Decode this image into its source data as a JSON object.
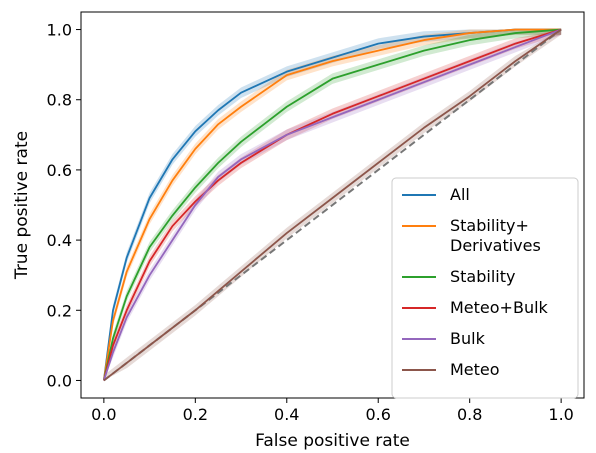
{
  "chart_data": {
    "type": "line",
    "title": "",
    "xlabel": "False positive rate",
    "ylabel": "True positive rate",
    "xlim": [
      -0.05,
      1.05
    ],
    "ylim": [
      -0.05,
      1.05
    ],
    "xticks": [
      "0.0",
      "0.2",
      "0.4",
      "0.6",
      "0.8",
      "1.0"
    ],
    "yticks": [
      "0.0",
      "0.2",
      "0.4",
      "0.6",
      "0.8",
      "1.0"
    ],
    "grid": false,
    "legend_position": "lower-right",
    "series": [
      {
        "name": "All",
        "color": "#1f77b4",
        "x": [
          0,
          0.02,
          0.05,
          0.1,
          0.15,
          0.2,
          0.25,
          0.3,
          0.4,
          0.5,
          0.6,
          0.7,
          0.8,
          0.9,
          1.0
        ],
        "y": [
          0,
          0.2,
          0.35,
          0.52,
          0.63,
          0.71,
          0.77,
          0.82,
          0.88,
          0.92,
          0.96,
          0.98,
          0.99,
          1.0,
          1.0
        ]
      },
      {
        "name": "Stability+\nDerivatives",
        "color": "#ff7f0e",
        "x": [
          0,
          0.02,
          0.05,
          0.1,
          0.15,
          0.2,
          0.25,
          0.3,
          0.4,
          0.5,
          0.6,
          0.7,
          0.8,
          0.9,
          1.0
        ],
        "y": [
          0,
          0.17,
          0.31,
          0.46,
          0.57,
          0.66,
          0.73,
          0.78,
          0.87,
          0.91,
          0.94,
          0.97,
          0.99,
          1.0,
          1.0
        ]
      },
      {
        "name": "Stability",
        "color": "#2ca02c",
        "x": [
          0,
          0.02,
          0.05,
          0.1,
          0.15,
          0.2,
          0.25,
          0.3,
          0.35,
          0.4,
          0.5,
          0.6,
          0.7,
          0.8,
          0.9,
          1.0
        ],
        "y": [
          0,
          0.12,
          0.24,
          0.38,
          0.47,
          0.55,
          0.62,
          0.68,
          0.73,
          0.78,
          0.86,
          0.9,
          0.94,
          0.97,
          0.99,
          1.0
        ]
      },
      {
        "name": "Meteo+Bulk",
        "color": "#d62728",
        "x": [
          0,
          0.02,
          0.05,
          0.1,
          0.15,
          0.2,
          0.25,
          0.3,
          0.4,
          0.5,
          0.6,
          0.7,
          0.8,
          0.9,
          1.0
        ],
        "y": [
          0,
          0.1,
          0.2,
          0.34,
          0.44,
          0.51,
          0.57,
          0.62,
          0.7,
          0.76,
          0.81,
          0.86,
          0.91,
          0.96,
          1.0
        ]
      },
      {
        "name": "Bulk",
        "color": "#9467bd",
        "x": [
          0,
          0.02,
          0.05,
          0.1,
          0.15,
          0.2,
          0.25,
          0.3,
          0.4,
          0.5,
          0.6,
          0.7,
          0.8,
          0.9,
          1.0
        ],
        "y": [
          0,
          0.08,
          0.18,
          0.3,
          0.4,
          0.5,
          0.58,
          0.63,
          0.7,
          0.75,
          0.8,
          0.85,
          0.9,
          0.95,
          1.0
        ]
      },
      {
        "name": "Meteo",
        "color": "#8c564b",
        "x": [
          0,
          0.05,
          0.1,
          0.2,
          0.3,
          0.4,
          0.5,
          0.6,
          0.7,
          0.8,
          0.9,
          1.0
        ],
        "y": [
          0,
          0.05,
          0.1,
          0.2,
          0.31,
          0.42,
          0.52,
          0.62,
          0.72,
          0.81,
          0.91,
          1.0
        ]
      }
    ],
    "reference_line": {
      "x": [
        0,
        1
      ],
      "y": [
        0,
        1
      ],
      "color": "#777777",
      "style": "dashed"
    }
  }
}
